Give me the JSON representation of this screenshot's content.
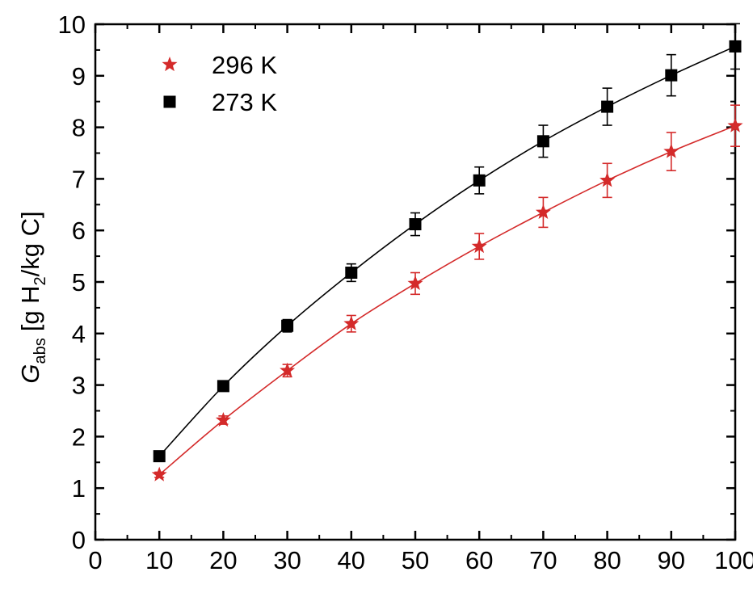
{
  "chart_data": {
    "type": "scatter",
    "title": "",
    "xlabel": "",
    "ylabel": {
      "symbol": "G",
      "symbol_sub": "abs",
      "prefix": "[g H",
      "prefix_sub": "2",
      "suffix": "/kg C]"
    },
    "xlim": [
      0,
      100
    ],
    "ylim": [
      0,
      10
    ],
    "xticks": [
      "0",
      "10",
      "20",
      "30",
      "40",
      "50",
      "60",
      "70",
      "80",
      "90",
      "100"
    ],
    "yticks": [
      "0",
      "1",
      "2",
      "3",
      "4",
      "5",
      "6",
      "7",
      "8",
      "9",
      "10"
    ],
    "grid": false,
    "legend_position": "top-left",
    "x": [
      10,
      20,
      30,
      40,
      50,
      60,
      70,
      80,
      90,
      100
    ],
    "series": [
      {
        "name": "296 K",
        "marker": "star",
        "color": "#d42a2a",
        "values": [
          1.26,
          2.32,
          3.28,
          4.19,
          4.97,
          5.69,
          6.35,
          6.97,
          7.53,
          8.03
        ],
        "error": [
          0.05,
          0.08,
          0.12,
          0.16,
          0.21,
          0.25,
          0.29,
          0.33,
          0.37,
          0.4
        ]
      },
      {
        "name": "273 K",
        "marker": "square",
        "color": "#000000",
        "values": [
          1.62,
          2.98,
          4.15,
          5.18,
          6.12,
          6.97,
          7.73,
          8.4,
          9.01,
          9.57
        ],
        "error": [
          0.04,
          0.07,
          0.12,
          0.17,
          0.22,
          0.26,
          0.31,
          0.36,
          0.4,
          0.44
        ]
      }
    ]
  }
}
